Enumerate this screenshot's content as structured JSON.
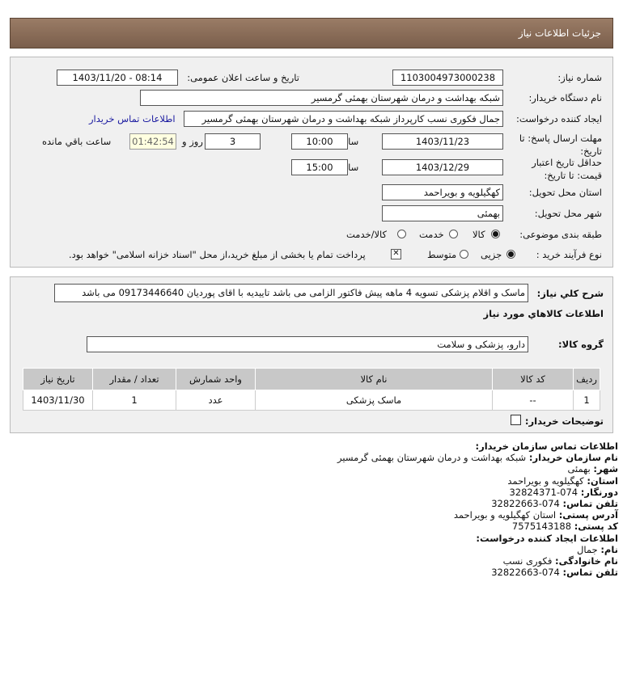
{
  "header": {
    "title": "جزئیات اطلاعات نیاز"
  },
  "form": {
    "need_number_label": "شماره نیاز:",
    "need_number": "1103004973000238",
    "announce_label": "تاریخ و ساعت اعلان عمومی:",
    "announce_value": "1403/11/20 - 08:14",
    "buyer_org_label": "نام دستگاه خریدار:",
    "buyer_org": "شبکه بهداشت و درمان شهرستان بهمئی گرمسیر",
    "creator_label": "ایجاد کننده درخواست:",
    "creator": "جمال  فکوری نسب کارپرداز شبکه بهداشت و درمان شهرستان بهمئی گرمسیر",
    "contact_link": "اطلاعات تماس خریدار",
    "deadline_label": "مهلت ارسال پاسخ: تا تاریخ:",
    "deadline_date": "1403/11/23",
    "time_label": "ساعت",
    "deadline_time": "10:00",
    "days": "3",
    "days_label": "روز و",
    "remaining": "01:42:54",
    "remaining_label": "ساعت باقي مانده",
    "validity_label": "حداقل تاریخ اعتبار قیمت: تا تاریخ:",
    "validity_date": "1403/12/29",
    "validity_time": "15:00",
    "province_label": "استان محل تحویل:",
    "province": "کهگیلویه و بویراحمد",
    "city_label": "شهر محل تحویل:",
    "city": "بهمئی",
    "category_label": "طبقه بندی موضوعی:",
    "category_options": [
      "کالا",
      "خدمت",
      "کالا/خدمت"
    ],
    "category_selected": "کالا",
    "process_label": "نوع فرآیند خرید :",
    "process_options": [
      "جزیی",
      "متوسط"
    ],
    "process_selected": "جزیی",
    "payment_note": "پرداخت تمام یا بخشی از مبلغ خرید،از محل \"اسناد خزانه اسلامی\" خواهد بود."
  },
  "details": {
    "desc_label": "شرح کلي نیاز:",
    "desc": "ماسک و اقلام پزشکی تسویه 4 ماهه پیش فاکتور الزامی می باشد تاییدیه با اقای پوردیان 09173446640 می باشد",
    "goods_heading": "اطلاعات کالاهاي مورد نیاز",
    "group_label": "گروه کالا:",
    "group": "دارو، پزشکی و سلامت",
    "table": {
      "headers": [
        "ردیف",
        "کد کالا",
        "نام کالا",
        "واحد شمارش",
        "تعداد / مقدار",
        "تاریخ نیاز"
      ],
      "rows": [
        [
          "1",
          "--",
          "ماسک پزشکی",
          "عدد",
          "1",
          "1403/11/30"
        ]
      ]
    },
    "buyer_notes_label": "توضیحات خریدار:"
  },
  "contact": {
    "heading": "اطلاعات تماس سازمان خریدار:",
    "org_label": "نام سازمان خریدار:",
    "org": "شبکه بهداشت و درمان شهرستان بهمئی گرمسیر",
    "city_label": "شهر:",
    "city": "بهمئی",
    "province_label": "استان:",
    "province": "کهگیلویه و بویراحمد",
    "fax_label": "دورنگار:",
    "fax": "074-32824371",
    "phone_label": "تلفن تماس:",
    "phone": "074-32822663",
    "address_label": "آدرس پستی:",
    "address": "استان کهگیلویه و بویراحمد",
    "postal_label": "کد پستی:",
    "postal": "7575143188",
    "creator_heading": "اطلاعات ایجاد کننده درخواست:",
    "name_label": "نام:",
    "name": "جمال",
    "family_label": "نام خانوادگی:",
    "family": "فکوری نسب",
    "creator_phone_label": "تلفن تماس:",
    "creator_phone": "074-32822663"
  },
  "colors": {
    "header": "#8a6d58",
    "link": "#1a1aa0",
    "panel": "#f0f0f0",
    "remaining_bg": "#ffffe0"
  }
}
